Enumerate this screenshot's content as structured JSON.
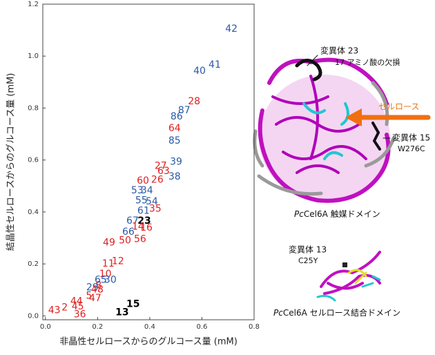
{
  "chart_data": {
    "type": "scatter",
    "xlabel": "非晶性セルロースからのグルコース量 (mM)",
    "ylabel": "結晶性セルロースからのグルコース量 (mM)",
    "xlim": [
      -0.01,
      0.8
    ],
    "ylim": [
      -0.015,
      1.2
    ],
    "xticks": [
      {
        "value": 0,
        "label": "0.0"
      },
      {
        "value": 0.2,
        "label": "0.2"
      },
      {
        "value": 0.4,
        "label": "0.4"
      },
      {
        "value": 0.6,
        "label": "0.6"
      },
      {
        "value": 0.8,
        "label": "0.8"
      }
    ],
    "yticks": [
      {
        "value": 0,
        "label": "0.0"
      },
      {
        "value": 0.2,
        "label": "0.2"
      },
      {
        "value": 0.4,
        "label": "0.4"
      },
      {
        "value": 0.6,
        "label": "0.6"
      },
      {
        "value": 0.8,
        "label": "0.8"
      },
      {
        "value": 1.0,
        "label": "1.0"
      },
      {
        "value": 1.2,
        "label": "1.2"
      }
    ],
    "points": {
      "labels": [
        "42",
        "41",
        "40",
        "28",
        "87",
        "86",
        "64",
        "85",
        "39",
        "27",
        "63",
        "38",
        "26",
        "60",
        "53",
        "34",
        "55",
        "54",
        "35",
        "61",
        "67",
        "23",
        "14",
        "16",
        "66",
        "56",
        "50",
        "49",
        "12",
        "11",
        "10",
        "30",
        "65",
        "8",
        "29",
        "48",
        "47",
        "5",
        "44",
        "45",
        "43",
        "2",
        "36",
        "13",
        "15"
      ],
      "x": [
        0.713,
        0.649,
        0.591,
        0.57,
        0.532,
        0.503,
        0.495,
        0.495,
        0.501,
        0.442,
        0.453,
        0.495,
        0.429,
        0.374,
        0.352,
        0.389,
        0.368,
        0.408,
        0.421,
        0.376,
        0.334,
        0.379,
        0.355,
        0.387,
        0.318,
        0.363,
        0.305,
        0.244,
        0.278,
        0.241,
        0.23,
        0.249,
        0.212,
        0.204,
        0.18,
        0.199,
        0.191,
        0.167,
        0.119,
        0.124,
        0.034,
        0.074,
        0.132,
        0.294,
        0.336
      ],
      "y": [
        1.104,
        0.966,
        0.942,
        0.825,
        0.79,
        0.766,
        0.721,
        0.673,
        0.593,
        0.577,
        0.556,
        0.535,
        0.524,
        0.519,
        0.482,
        0.482,
        0.444,
        0.439,
        0.412,
        0.404,
        0.365,
        0.365,
        0.343,
        0.338,
        0.322,
        0.295,
        0.29,
        0.282,
        0.21,
        0.2,
        0.16,
        0.138,
        0.138,
        0.117,
        0.109,
        0.101,
        0.067,
        0.077,
        0.056,
        0.035,
        0.021,
        0.032,
        0.005,
        0.013,
        0.045
      ],
      "colors": [
        "#2a5aa8",
        "#2a5aa8",
        "#2a5aa8",
        "#e02020",
        "#2a5aa8",
        "#2a5aa8",
        "#e02020",
        "#2a5aa8",
        "#2a5aa8",
        "#e02020",
        "#e02020",
        "#2a5aa8",
        "#e02020",
        "#e02020",
        "#2a5aa8",
        "#2a5aa8",
        "#2a5aa8",
        "#2a5aa8",
        "#e02020",
        "#2a5aa8",
        "#2a5aa8",
        "#000000",
        "#e02020",
        "#e02020",
        "#2a5aa8",
        "#e02020",
        "#e02020",
        "#e02020",
        "#e02020",
        "#e02020",
        "#e02020",
        "#2a5aa8",
        "#2a5aa8",
        "#e02020",
        "#2a5aa8",
        "#e02020",
        "#e02020",
        "#e02020",
        "#e02020",
        "#e02020",
        "#e02020",
        "#e02020",
        "#e02020",
        "#000000",
        "#000000"
      ]
    }
  },
  "figure": {
    "mutant23": "変異体 23",
    "mutant23_note": "17 アミノ酸の欠損",
    "cellulose": "セルロース",
    "mutant15": "変異体 15",
    "mutant15_note": "W276C",
    "catalytic_prefix": "Pc",
    "catalytic_rest": "Cel6A 触媒ドメイン",
    "mutant13": "変異体 13",
    "mutant13_note": "C25Y",
    "binding_prefix": "Pc",
    "binding_rest": "Cel6A セルロース結合ドメイン"
  }
}
